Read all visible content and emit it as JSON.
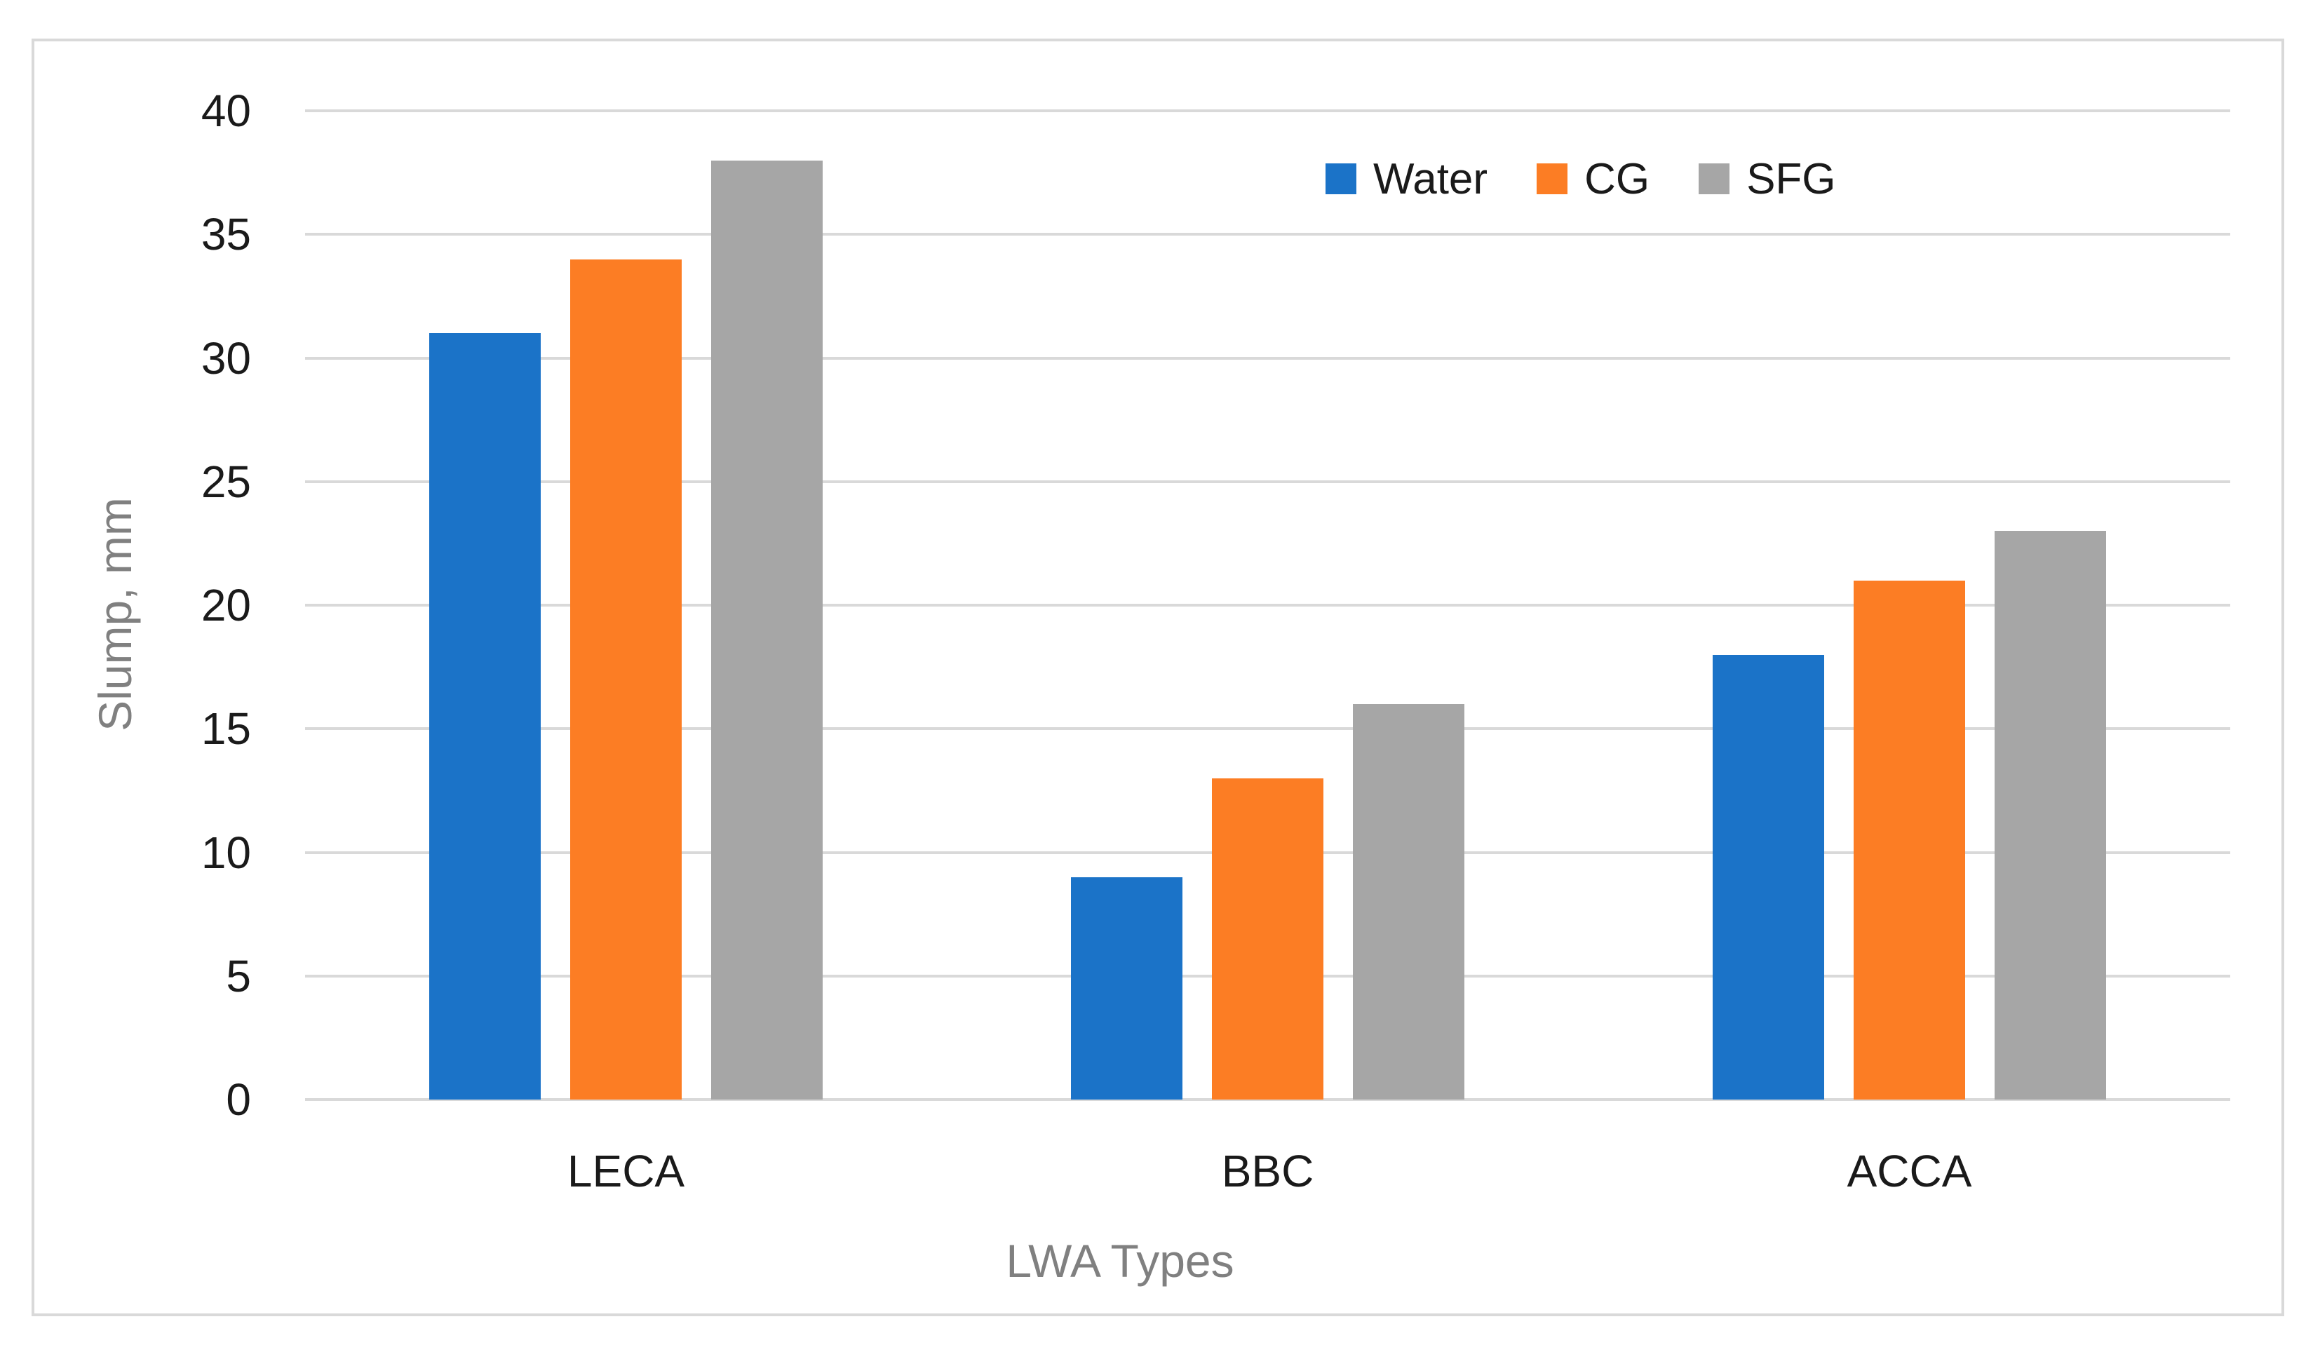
{
  "chart_data": {
    "type": "bar",
    "title": "",
    "categories": [
      "LECA",
      "BBC",
      "ACCA"
    ],
    "series": [
      {
        "name": "Water",
        "color": "#1B73C8",
        "values": [
          31,
          9,
          18
        ]
      },
      {
        "name": "CG",
        "color": "#FC7D24",
        "values": [
          34,
          13,
          21
        ]
      },
      {
        "name": "SFG",
        "color": "#A6A6A6",
        "values": [
          38,
          16,
          23
        ]
      }
    ],
    "xlabel": "LWA Types",
    "ylabel": "Slump, mm",
    "ylim": [
      0,
      40
    ],
    "ytick_step": 5,
    "yticks": [
      0,
      5,
      10,
      15,
      20,
      25,
      30,
      35,
      40
    ],
    "grid": true,
    "legend_position": "top",
    "gridline_color": "#D9D9D9",
    "border_color": "#D9D9D9",
    "tick_label_color": "#1A1A1A",
    "axis_title_color": "#808080"
  }
}
